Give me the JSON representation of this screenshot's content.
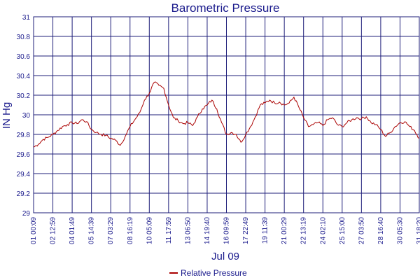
{
  "chart_data": {
    "type": "line",
    "title": "Barometric Pressure",
    "ylabel": "IN Hg",
    "xlabel": "Jul 09",
    "ylim": [
      29,
      31
    ],
    "yticks": [
      "29",
      "29.2",
      "29.4",
      "29.6",
      "29.8",
      "30",
      "30.2",
      "30.4",
      "30.6",
      "30.8",
      "31"
    ],
    "xticks": [
      "01 00:09",
      "02 12:59",
      "04 01:49",
      "05 14:39",
      "07 03:29",
      "08 16:19",
      "10 05:09",
      "11 17:59",
      "13 06:50",
      "14 19:40",
      "16 09:59",
      "17 22:49",
      "19 11:39",
      "21 00:29",
      "22 13:19",
      "24 02:10",
      "25 15:00",
      "27 03:50",
      "28 16:40",
      "30 05:30",
      "31 18:20"
    ],
    "grid": true,
    "legend": "bottom-center",
    "colors": {
      "line": "#aa0000",
      "grid": "#1f1f7a",
      "text": "#1a1a8c"
    },
    "series": [
      {
        "name": "Relative Pressure",
        "x": [
          0,
          0.25,
          0.5,
          0.75,
          1,
          1.25,
          1.5,
          1.75,
          2,
          2.25,
          2.5,
          2.75,
          3,
          3.25,
          3.5,
          3.75,
          4,
          4.25,
          4.5,
          4.75,
          5,
          5.25,
          5.5,
          5.75,
          6,
          6.25,
          6.5,
          6.75,
          7,
          7.25,
          7.5,
          7.75,
          8,
          8.25,
          8.5,
          8.75,
          9,
          9.25,
          9.5,
          9.75,
          10,
          10.25,
          10.5,
          10.75,
          11,
          11.25,
          11.5,
          11.75,
          12,
          12.25,
          12.5,
          12.75,
          13,
          13.25,
          13.5,
          13.75,
          14,
          14.25,
          14.5,
          14.75,
          15,
          15.25,
          15.5,
          15.75,
          16,
          16.25,
          16.5,
          16.75,
          17,
          17.25,
          17.5,
          17.75,
          18,
          18.25,
          18.5,
          18.75,
          19,
          19.25,
          19.5,
          19.75,
          20
        ],
        "values": [
          29.67,
          29.7,
          29.75,
          29.77,
          29.8,
          29.84,
          29.88,
          29.9,
          29.92,
          29.91,
          29.95,
          29.93,
          29.85,
          29.82,
          29.8,
          29.79,
          29.76,
          29.74,
          29.69,
          29.78,
          29.88,
          29.95,
          30.02,
          30.15,
          30.22,
          30.33,
          30.3,
          30.27,
          30.1,
          29.97,
          29.94,
          29.91,
          29.92,
          29.89,
          29.98,
          30.06,
          30.1,
          30.15,
          30.06,
          29.92,
          29.8,
          29.82,
          29.8,
          29.72,
          29.8,
          29.88,
          29.98,
          30.1,
          30.12,
          30.15,
          30.12,
          30.13,
          30.1,
          30.12,
          30.18,
          30.08,
          29.97,
          29.88,
          29.9,
          29.92,
          29.89,
          29.95,
          29.97,
          29.9,
          29.88,
          29.92,
          29.95,
          29.97,
          29.96,
          29.98,
          29.92,
          29.9,
          29.85,
          29.78,
          29.82,
          29.88,
          29.92,
          29.93,
          29.88,
          29.84,
          29.76
        ]
      }
    ]
  }
}
